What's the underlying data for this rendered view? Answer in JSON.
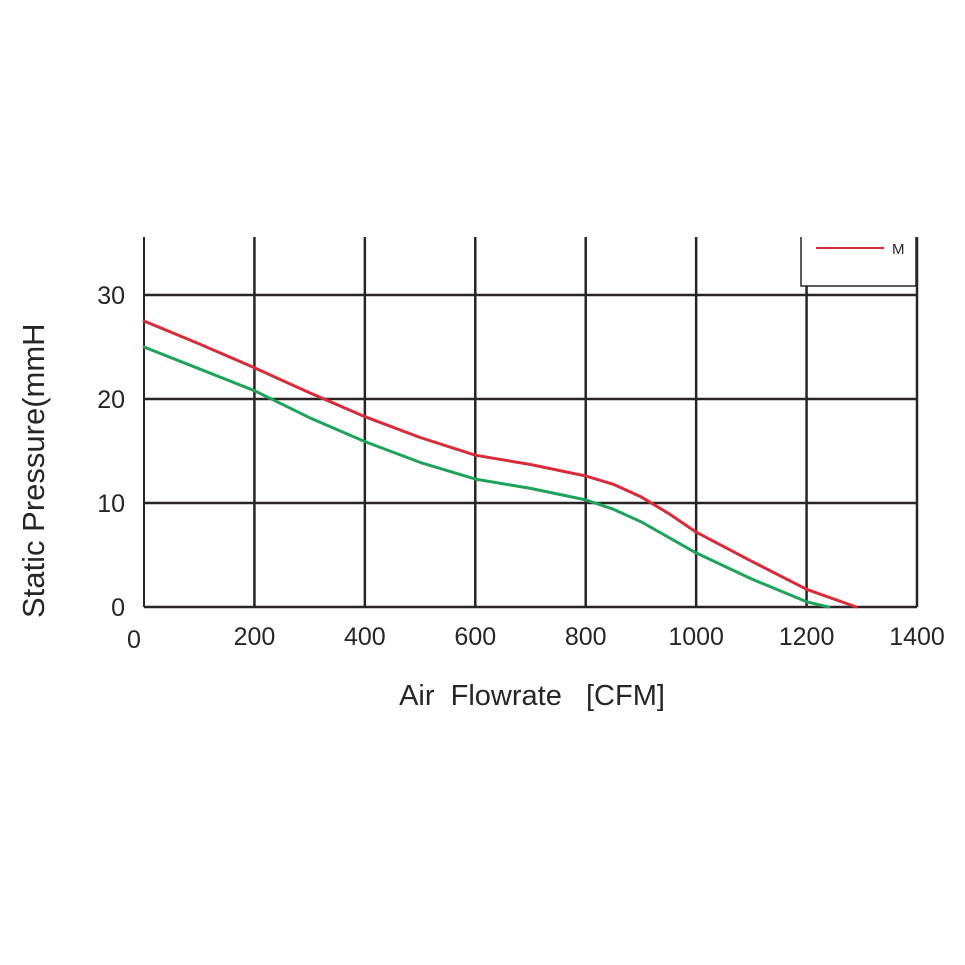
{
  "chart_data": {
    "type": "line",
    "xlabel": "Air  Flowrate   [CFM]",
    "ylabel": "Static Pressure(mmH",
    "xlim": [
      0,
      1400
    ],
    "ylim": [
      0,
      35
    ],
    "x_ticks": [
      0,
      200,
      400,
      600,
      800,
      1000,
      1200,
      1400
    ],
    "y_ticks": [
      0,
      10,
      20,
      30
    ],
    "grid": true,
    "legend_position": "top-right",
    "colors": {
      "grid": "#2a2525",
      "series_red": "#d92b3a",
      "series_green": "#1fa35a"
    },
    "series": [
      {
        "name": "M",
        "color": "#d92b3a",
        "x": [
          0,
          100,
          200,
          300,
          400,
          500,
          600,
          700,
          800,
          850,
          900,
          950,
          1000,
          1100,
          1200,
          1290
        ],
        "y": [
          27.5,
          25.3,
          23.0,
          20.6,
          18.3,
          16.3,
          14.6,
          13.7,
          12.6,
          11.8,
          10.6,
          9.0,
          7.2,
          4.4,
          1.7,
          0
        ]
      },
      {
        "color": "#1fa35a",
        "x": [
          0,
          100,
          200,
          300,
          400,
          500,
          600,
          700,
          800,
          850,
          900,
          1000,
          1100,
          1200,
          1240
        ],
        "y": [
          25.0,
          22.9,
          20.8,
          18.2,
          15.9,
          13.9,
          12.3,
          11.4,
          10.3,
          9.4,
          8.2,
          5.2,
          2.7,
          0.5,
          0
        ]
      }
    ]
  }
}
